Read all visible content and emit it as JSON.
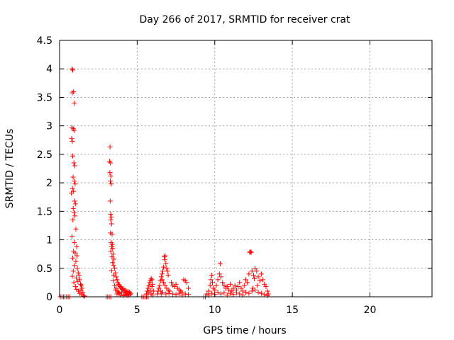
{
  "chart_data": {
    "type": "scatter",
    "title": "Day 266 of 2017, SRMTID for receiver crat",
    "xlabel": "GPS time / hours",
    "ylabel": "SRMTID / TECUs",
    "xlim": [
      0,
      24
    ],
    "ylim": [
      0,
      4.5
    ],
    "xticks": [
      0,
      5,
      10,
      15,
      20
    ],
    "yticks": [
      0,
      0.5,
      1,
      1.5,
      2,
      2.5,
      3,
      3.5,
      4,
      4.5
    ],
    "xtick_labels": [
      "0",
      "5",
      "10",
      "15",
      "20"
    ],
    "ytick_labels": [
      "0",
      "0.5",
      "1",
      "1.5",
      "2",
      "2.5",
      "3",
      "3.5",
      "4",
      "4.5"
    ],
    "grid": true,
    "marker": "+",
    "color": "#ff0000",
    "series": [
      {
        "name": "SRMTID",
        "points": [
          [
            0.05,
            0
          ],
          [
            0.15,
            0
          ],
          [
            0.25,
            0
          ],
          [
            0.35,
            0
          ],
          [
            0.45,
            0
          ],
          [
            0.55,
            0
          ],
          [
            0.65,
            0
          ],
          [
            0.8,
            4.0
          ],
          [
            0.85,
            3.98
          ],
          [
            0.9,
            3.6
          ],
          [
            0.82,
            3.58
          ],
          [
            0.95,
            3.4
          ],
          [
            0.8,
            2.97
          ],
          [
            0.88,
            2.95
          ],
          [
            0.93,
            2.92
          ],
          [
            0.78,
            2.78
          ],
          [
            0.82,
            2.73
          ],
          [
            0.85,
            2.47
          ],
          [
            0.92,
            2.35
          ],
          [
            0.98,
            2.3
          ],
          [
            0.87,
            2.1
          ],
          [
            0.95,
            2.03
          ],
          [
            1.0,
            1.98
          ],
          [
            0.83,
            1.9
          ],
          [
            0.9,
            1.85
          ],
          [
            0.76,
            1.82
          ],
          [
            0.97,
            1.68
          ],
          [
            1.02,
            1.63
          ],
          [
            0.88,
            1.55
          ],
          [
            0.94,
            1.48
          ],
          [
            0.99,
            1.42
          ],
          [
            0.86,
            1.35
          ],
          [
            1.05,
            1.19
          ],
          [
            0.8,
            1.06
          ],
          [
            0.95,
            0.95
          ],
          [
            1.1,
            0.88
          ],
          [
            0.9,
            0.8
          ],
          [
            1.0,
            0.77
          ],
          [
            1.12,
            0.72
          ],
          [
            0.85,
            0.68
          ],
          [
            1.05,
            0.62
          ],
          [
            0.97,
            0.55
          ],
          [
            1.15,
            0.5
          ],
          [
            0.88,
            0.45
          ],
          [
            1.2,
            0.42
          ],
          [
            1.25,
            0.38
          ],
          [
            0.82,
            0.36
          ],
          [
            1.08,
            0.33
          ],
          [
            1.3,
            0.3
          ],
          [
            1.18,
            0.27
          ],
          [
            0.92,
            0.25
          ],
          [
            1.35,
            0.22
          ],
          [
            1.4,
            0.2
          ],
          [
            1.02,
            0.18
          ],
          [
            1.45,
            0.15
          ],
          [
            1.1,
            0.13
          ],
          [
            1.22,
            0.1
          ],
          [
            1.5,
            0.08
          ],
          [
            1.3,
            0.06
          ],
          [
            1.42,
            0.04
          ],
          [
            1.55,
            0.02
          ],
          [
            1.6,
            0.01
          ],
          [
            1.38,
            0.12
          ],
          [
            3.0,
            0
          ],
          [
            3.1,
            0
          ],
          [
            3.2,
            0
          ],
          [
            3.3,
            0
          ],
          [
            3.25,
            2.63
          ],
          [
            3.22,
            2.38
          ],
          [
            3.28,
            2.35
          ],
          [
            3.24,
            2.18
          ],
          [
            3.3,
            2.12
          ],
          [
            3.27,
            2.03
          ],
          [
            3.32,
            1.98
          ],
          [
            3.26,
            1.68
          ],
          [
            3.29,
            1.45
          ],
          [
            3.33,
            1.4
          ],
          [
            3.3,
            1.35
          ],
          [
            3.35,
            1.28
          ],
          [
            3.28,
            1.12
          ],
          [
            3.38,
            1.1
          ],
          [
            3.32,
            0.95
          ],
          [
            3.4,
            0.92
          ],
          [
            3.36,
            0.88
          ],
          [
            3.42,
            0.85
          ],
          [
            3.3,
            0.8
          ],
          [
            3.45,
            0.75
          ],
          [
            3.38,
            0.7
          ],
          [
            3.5,
            0.66
          ],
          [
            3.42,
            0.6
          ],
          [
            3.48,
            0.55
          ],
          [
            3.55,
            0.5
          ],
          [
            3.35,
            0.46
          ],
          [
            3.6,
            0.42
          ],
          [
            3.5,
            0.38
          ],
          [
            3.65,
            0.35
          ],
          [
            3.7,
            0.3
          ],
          [
            3.45,
            0.28
          ],
          [
            3.75,
            0.25
          ],
          [
            3.8,
            0.22
          ],
          [
            3.85,
            0.2
          ],
          [
            3.9,
            0.18
          ],
          [
            3.95,
            0.16
          ],
          [
            4.0,
            0.15
          ],
          [
            4.05,
            0.13
          ],
          [
            4.1,
            0.14
          ],
          [
            4.15,
            0.1
          ],
          [
            4.2,
            0.12
          ],
          [
            4.25,
            0.08
          ],
          [
            4.3,
            0.1
          ],
          [
            4.35,
            0.06
          ],
          [
            4.4,
            0.09
          ],
          [
            4.45,
            0.05
          ],
          [
            4.5,
            0.08
          ],
          [
            4.55,
            0.04
          ],
          [
            4.6,
            0.06
          ],
          [
            3.6,
            0.12
          ],
          [
            3.7,
            0.05
          ],
          [
            3.8,
            0.08
          ],
          [
            3.9,
            0.03
          ],
          [
            4.0,
            0.07
          ],
          [
            4.1,
            0.02
          ],
          [
            4.2,
            0.04
          ],
          [
            4.3,
            0.03
          ],
          [
            4.4,
            0.02
          ],
          [
            3.55,
            0.2
          ],
          [
            3.65,
            0.15
          ],
          [
            3.75,
            0.1
          ],
          [
            3.85,
            0.06
          ],
          [
            5.3,
            0
          ],
          [
            5.4,
            0
          ],
          [
            5.5,
            0
          ],
          [
            5.6,
            0
          ],
          [
            5.7,
            0
          ],
          [
            5.6,
            0.05
          ],
          [
            5.65,
            0.1
          ],
          [
            5.7,
            0.15
          ],
          [
            5.75,
            0.2
          ],
          [
            5.8,
            0.25
          ],
          [
            5.85,
            0.28
          ],
          [
            5.9,
            0.32
          ],
          [
            5.95,
            0.3
          ],
          [
            6.0,
            0.22
          ],
          [
            5.75,
            0.08
          ],
          [
            5.85,
            0.12
          ],
          [
            5.95,
            0.18
          ],
          [
            6.05,
            0.1
          ],
          [
            5.9,
            0.05
          ],
          [
            6.0,
            0.03
          ],
          [
            6.3,
            0.05
          ],
          [
            6.35,
            0.1
          ],
          [
            6.4,
            0.15
          ],
          [
            6.45,
            0.2
          ],
          [
            6.5,
            0.28
          ],
          [
            6.55,
            0.35
          ],
          [
            6.6,
            0.4
          ],
          [
            6.65,
            0.45
          ],
          [
            6.7,
            0.52
          ],
          [
            6.75,
            0.7
          ],
          [
            6.8,
            0.72
          ],
          [
            6.78,
            0.65
          ],
          [
            6.85,
            0.58
          ],
          [
            6.9,
            0.5
          ],
          [
            6.95,
            0.45
          ],
          [
            7.0,
            0.38
          ],
          [
            6.6,
            0.3
          ],
          [
            6.7,
            0.25
          ],
          [
            6.8,
            0.2
          ],
          [
            6.9,
            0.15
          ],
          [
            7.0,
            0.12
          ],
          [
            7.1,
            0.1
          ],
          [
            7.2,
            0.25
          ],
          [
            7.3,
            0.2
          ],
          [
            7.4,
            0.18
          ],
          [
            7.5,
            0.22
          ],
          [
            7.6,
            0.15
          ],
          [
            7.7,
            0.12
          ],
          [
            7.8,
            0.1
          ],
          [
            7.9,
            0.08
          ],
          [
            8.0,
            0.3
          ],
          [
            8.1,
            0.28
          ],
          [
            8.2,
            0.25
          ],
          [
            8.3,
            0.15
          ],
          [
            7.3,
            0.05
          ],
          [
            7.5,
            0.04
          ],
          [
            7.7,
            0.06
          ],
          [
            7.9,
            0.03
          ],
          [
            8.1,
            0.05
          ],
          [
            8.3,
            0.04
          ],
          [
            6.5,
            0.1
          ],
          [
            6.55,
            0.05
          ],
          [
            6.65,
            0.08
          ],
          [
            6.85,
            0.05
          ],
          [
            7.05,
            0.06
          ],
          [
            9.5,
            0.05
          ],
          [
            9.6,
            0.1
          ],
          [
            9.7,
            0.2
          ],
          [
            9.75,
            0.3
          ],
          [
            9.8,
            0.38
          ],
          [
            9.85,
            0.25
          ],
          [
            9.9,
            0.15
          ],
          [
            10.0,
            0.12
          ],
          [
            10.1,
            0.2
          ],
          [
            10.2,
            0.3
          ],
          [
            10.3,
            0.4
          ],
          [
            10.35,
            0.58
          ],
          [
            10.4,
            0.35
          ],
          [
            10.5,
            0.25
          ],
          [
            10.6,
            0.2
          ],
          [
            10.7,
            0.15
          ],
          [
            10.8,
            0.18
          ],
          [
            10.9,
            0.12
          ],
          [
            11.0,
            0.22
          ],
          [
            11.1,
            0.1
          ],
          [
            11.2,
            0.15
          ],
          [
            11.3,
            0.2
          ],
          [
            11.4,
            0.12
          ],
          [
            11.5,
            0.18
          ],
          [
            11.6,
            0.25
          ],
          [
            11.7,
            0.15
          ],
          [
            11.8,
            0.1
          ],
          [
            11.9,
            0.2
          ],
          [
            12.0,
            0.3
          ],
          [
            12.1,
            0.25
          ],
          [
            12.2,
            0.4
          ],
          [
            12.25,
            0.78
          ],
          [
            12.3,
            0.79
          ],
          [
            12.35,
            0.78
          ],
          [
            12.4,
            0.45
          ],
          [
            12.5,
            0.38
          ],
          [
            12.55,
            0.32
          ],
          [
            12.6,
            0.5
          ],
          [
            12.7,
            0.45
          ],
          [
            12.8,
            0.35
          ],
          [
            12.9,
            0.28
          ],
          [
            13.0,
            0.4
          ],
          [
            13.1,
            0.3
          ],
          [
            13.2,
            0.22
          ],
          [
            13.3,
            0.18
          ],
          [
            13.4,
            0.1
          ],
          [
            13.45,
            0.05
          ],
          [
            9.6,
            0.03
          ],
          [
            9.8,
            0.06
          ],
          [
            10.0,
            0.04
          ],
          [
            10.2,
            0.08
          ],
          [
            10.4,
            0.05
          ],
          [
            10.6,
            0.07
          ],
          [
            10.8,
            0.03
          ],
          [
            11.0,
            0.06
          ],
          [
            11.2,
            0.04
          ],
          [
            11.4,
            0.07
          ],
          [
            11.6,
            0.05
          ],
          [
            11.8,
            0.03
          ],
          [
            12.0,
            0.08
          ],
          [
            12.2,
            0.06
          ],
          [
            12.4,
            0.1
          ],
          [
            12.6,
            0.12
          ],
          [
            12.8,
            0.08
          ],
          [
            13.0,
            0.06
          ],
          [
            13.2,
            0.04
          ],
          [
            13.4,
            0.02
          ],
          [
            9.4,
            0
          ],
          [
            9.3,
            0
          ],
          [
            12.45,
            0.15
          ],
          [
            12.75,
            0.2
          ]
        ]
      }
    ]
  }
}
